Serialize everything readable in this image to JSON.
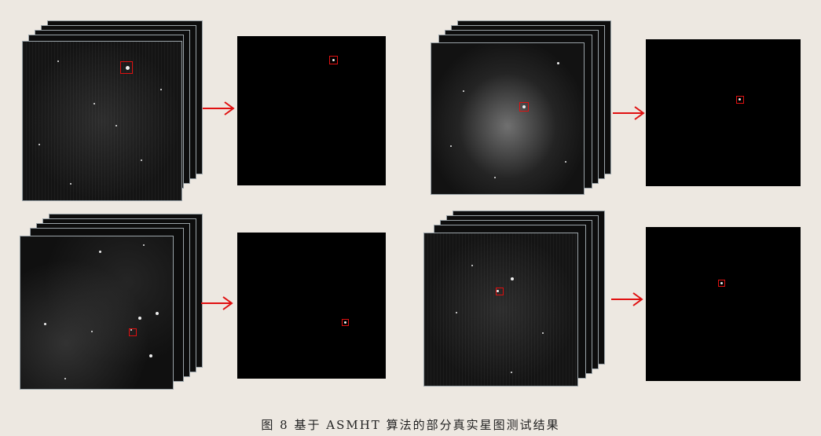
{
  "figure": {
    "caption": "图 8   基于 ASMHT 算法的部分真实星图测试结果"
  },
  "colors": {
    "background": "#ede8e1",
    "marker": "#e01010",
    "arrow": "#e01010"
  },
  "panels": [
    {
      "id": "top-left",
      "variant": "noise"
    },
    {
      "id": "top-right",
      "variant": "glow"
    },
    {
      "id": "bottom-left",
      "variant": "cloud"
    },
    {
      "id": "bottom-right",
      "variant": "noise"
    }
  ]
}
